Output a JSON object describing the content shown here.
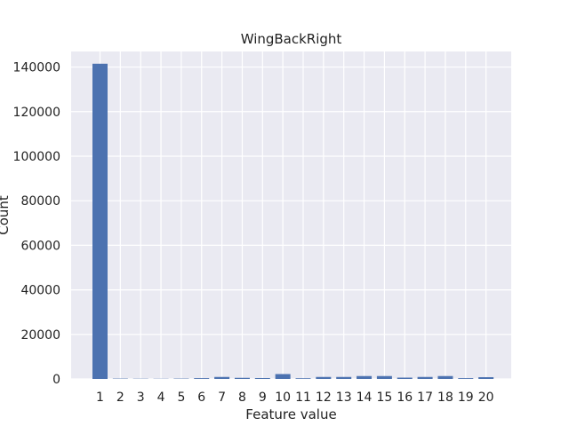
{
  "chart_data": {
    "type": "bar",
    "title": "WingBackRight",
    "xlabel": "Feature value",
    "ylabel": "Count",
    "categories": [
      "1",
      "2",
      "3",
      "4",
      "5",
      "6",
      "7",
      "8",
      "9",
      "10",
      "11",
      "12",
      "13",
      "14",
      "15",
      "16",
      "17",
      "18",
      "19",
      "20"
    ],
    "values": [
      141500,
      150,
      100,
      80,
      150,
      350,
      900,
      500,
      400,
      2200,
      300,
      900,
      900,
      1300,
      1300,
      600,
      900,
      1300,
      350,
      800
    ],
    "yticks": [
      "0",
      "20000",
      "40000",
      "60000",
      "80000",
      "100000",
      "120000",
      "140000"
    ],
    "ylim": [
      0,
      147000
    ],
    "grid": true,
    "colors": {
      "bar": "#4c72b0",
      "plot_background": "#eaeaf2",
      "grid": "#ffffff"
    }
  }
}
